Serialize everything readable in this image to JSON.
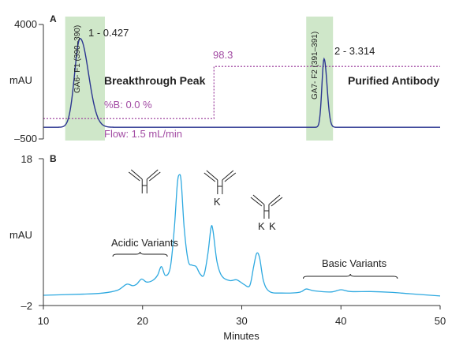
{
  "chart_data": [
    {
      "panel_label": "A",
      "type": "line",
      "ylabel": "mAU",
      "y_ticks": [
        "4000",
        "–500"
      ],
      "ylim": [
        -500,
        4000
      ],
      "xlim": [
        10,
        50
      ],
      "peaks": [
        {
          "label": "1 - 0.427",
          "rt": 13.7,
          "height": 3450,
          "fraction": "GA6- F1 (390–390)",
          "annotation": "Breakthrough Peak"
        },
        {
          "label": "2 - 3.314",
          "rt": 38.3,
          "height": 2650,
          "fraction": "GA7- F2 (391–391)",
          "annotation": "Purified Antibody"
        }
      ],
      "fraction_windows": [
        [
          12.2,
          16.2
        ],
        [
          36.5,
          39.2
        ]
      ],
      "baseline": -40,
      "gradient": {
        "start_label": "%B: 0.0 %",
        "step_label": "98.3",
        "points": [
          [
            10,
            300
          ],
          [
            27.2,
            300
          ],
          [
            27.2,
            2350
          ],
          [
            50,
            2350
          ]
        ],
        "color": "#a24ba3"
      },
      "flow_label": "Flow: 1.5 mL/min",
      "line_color": "#2b3591",
      "shade_color": "#cfe7c9"
    },
    {
      "panel_label": "B",
      "type": "line",
      "ylabel": "mAU",
      "y_ticks": [
        "18",
        "–2"
      ],
      "ylim": [
        -2,
        18
      ],
      "xlabel": "Minutes",
      "x_ticks": [
        10,
        20,
        30,
        40,
        50
      ],
      "xlim": [
        10,
        50
      ],
      "line_color": "#2ea9e0",
      "series_points": [
        [
          10,
          -0.6
        ],
        [
          14,
          -0.45
        ],
        [
          16,
          -0.3
        ],
        [
          17.5,
          0.1
        ],
        [
          18.4,
          0.9
        ],
        [
          19,
          0.7
        ],
        [
          19.4,
          0.9
        ],
        [
          19.9,
          1.6
        ],
        [
          20.4,
          1.2
        ],
        [
          21,
          1.4
        ],
        [
          21.5,
          2.1
        ],
        [
          21.9,
          3.3
        ],
        [
          22.3,
          2.1
        ],
        [
          22.8,
          3.2
        ],
        [
          23.2,
          8.5
        ],
        [
          23.5,
          14.5
        ],
        [
          23.7,
          15.8
        ],
        [
          23.9,
          14.8
        ],
        [
          24.2,
          8.5
        ],
        [
          24.6,
          4.1
        ],
        [
          25.0,
          3.5
        ],
        [
          25.4,
          3.3
        ],
        [
          25.8,
          2.3
        ],
        [
          26.2,
          2.2
        ],
        [
          26.6,
          5.2
        ],
        [
          26.9,
          8.6
        ],
        [
          27.1,
          8.2
        ],
        [
          27.5,
          4.0
        ],
        [
          28.0,
          2.0
        ],
        [
          28.8,
          1.4
        ],
        [
          29.5,
          1.5
        ],
        [
          30.2,
          0.9
        ],
        [
          30.8,
          0.7
        ],
        [
          31.2,
          3.3
        ],
        [
          31.5,
          5.1
        ],
        [
          31.8,
          4.5
        ],
        [
          32.2,
          1.3
        ],
        [
          32.8,
          -0.1
        ],
        [
          34,
          -0.3
        ],
        [
          35.8,
          -0.2
        ],
        [
          36.5,
          0.25
        ],
        [
          37.3,
          0.0
        ],
        [
          39,
          -0.15
        ],
        [
          40,
          0.15
        ],
        [
          41,
          -0.1
        ],
        [
          43,
          -0.1
        ],
        [
          45,
          -0.2
        ],
        [
          47,
          -0.4
        ],
        [
          50,
          -0.7
        ]
      ],
      "annotations": [
        {
          "label": "Acidic Variants",
          "x_range": [
            17.0,
            22.5
          ]
        },
        {
          "label": "Basic Variants",
          "x_range": [
            36.2,
            45.7
          ]
        }
      ],
      "antibody_labels": [
        {
          "x": 20.2,
          "letters": []
        },
        {
          "x": 27.8,
          "letters": [
            "K"
          ]
        },
        {
          "x": 32.5,
          "letters": [
            "K",
            "K"
          ]
        }
      ]
    }
  ]
}
